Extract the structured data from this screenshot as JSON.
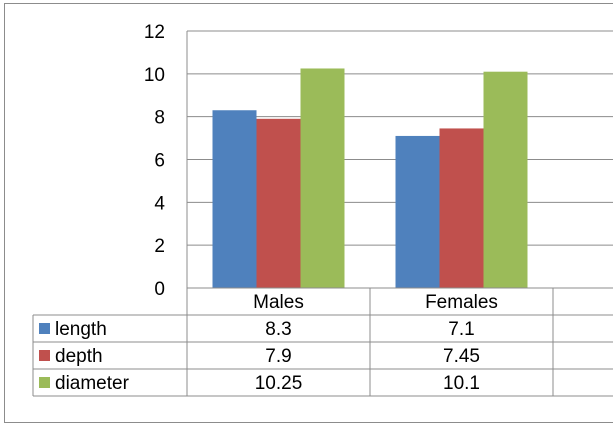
{
  "chart_data": {
    "type": "bar",
    "categories": [
      "Males",
      "Females"
    ],
    "series": [
      {
        "name": "length",
        "values": [
          8.3,
          7.1
        ],
        "labels": [
          "8.3",
          "7.1"
        ],
        "color": "#4f81bd"
      },
      {
        "name": "depth",
        "values": [
          7.9,
          7.45
        ],
        "labels": [
          "7.9",
          "7.45"
        ],
        "color": "#c0504d"
      },
      {
        "name": "diameter",
        "values": [
          10.25,
          10.1
        ],
        "labels": [
          "10.25",
          "10.1"
        ],
        "color": "#9bbb59"
      }
    ],
    "ylim": [
      0,
      12
    ],
    "yticks": [
      0,
      2,
      4,
      6,
      8,
      10,
      12
    ],
    "grid": true,
    "legend": "data-table-left"
  }
}
